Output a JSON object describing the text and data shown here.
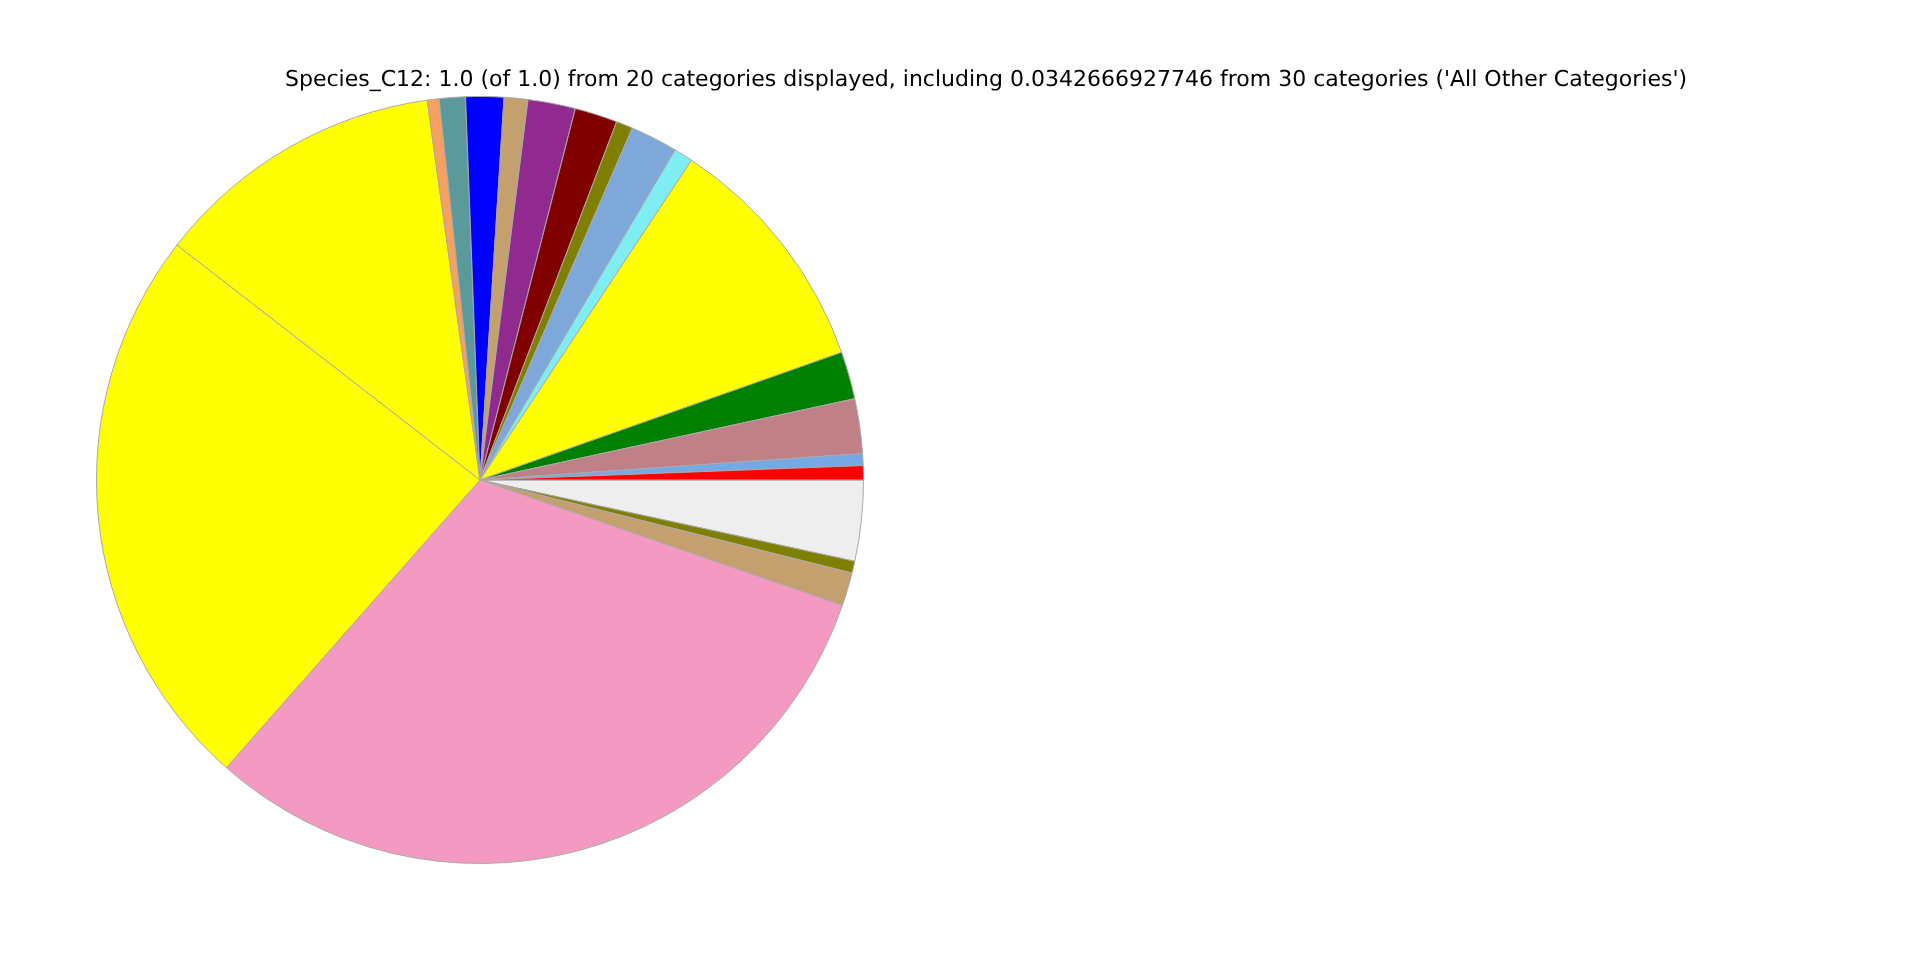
{
  "chart_data": {
    "type": "pie",
    "title": "Species_C12: 1.0 (of 1.0) from 20 categories displayed, including 0.0342666927746 from 30 categories ('All Other Categories')",
    "categories": [
      null,
      null,
      null,
      null,
      null,
      null,
      null,
      null,
      null,
      null,
      null,
      null,
      null,
      null,
      null,
      null,
      null,
      null,
      null,
      null
    ],
    "values": [
      0.6,
      0.5,
      2.3,
      2.0,
      10.3,
      0.8,
      2.0,
      0.7,
      1.8,
      2.0,
      1.0,
      1.6,
      1.1,
      0.5,
      12.3,
      24.0,
      31.2,
      1.4,
      0.5,
      3.4
    ],
    "colors": [
      "#ff0000",
      "#74a9e6",
      "#bf8088",
      "#008000",
      "#ffff00",
      "#7feef4",
      "#7fa8da",
      "#808000",
      "#800000",
      "#912a8e",
      "#c4a06e",
      "#0000ff",
      "#5a9a9a",
      "#f7a060",
      "#ffff00",
      "#ffff00",
      "#f49ac2",
      "#c4a06e",
      "#808000",
      "#eeeeee"
    ]
  }
}
